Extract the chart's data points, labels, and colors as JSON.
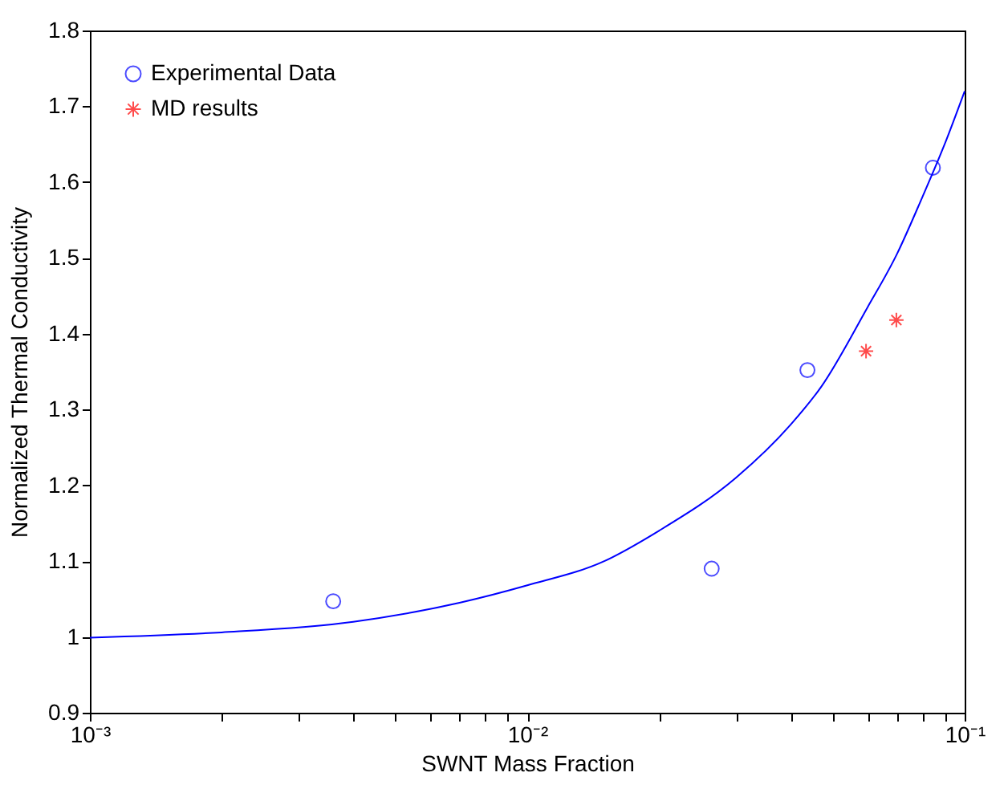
{
  "chart_data": {
    "type": "scatter",
    "xlabel": "SWNT Mass Fraction",
    "ylabel": "Normalized Thermal Conductivity",
    "log": "x",
    "grid": false,
    "legend": "top left",
    "xlim": [
      0.001,
      0.1
    ],
    "xticks": [
      {
        "value": 0.001,
        "label": "10⁻³"
      },
      {
        "value": 0.002,
        "label": null
      },
      {
        "value": 0.003,
        "label": null
      },
      {
        "value": 0.004,
        "label": null
      },
      {
        "value": 0.005,
        "label": null
      },
      {
        "value": 0.006,
        "label": null
      },
      {
        "value": 0.007,
        "label": null
      },
      {
        "value": 0.008,
        "label": null
      },
      {
        "value": 0.009,
        "label": null
      },
      {
        "value": 0.01,
        "label": "10⁻²"
      },
      {
        "value": 0.02,
        "label": null
      },
      {
        "value": 0.03,
        "label": null
      },
      {
        "value": 0.04,
        "label": null
      },
      {
        "value": 0.05,
        "label": null
      },
      {
        "value": 0.06,
        "label": null
      },
      {
        "value": 0.07,
        "label": null
      },
      {
        "value": 0.08,
        "label": null
      },
      {
        "value": 0.09,
        "label": null
      },
      {
        "value": 0.1,
        "label": "10⁻¹"
      }
    ],
    "ylim": [
      0.9,
      1.8
    ],
    "yticks": [
      0.9,
      1,
      1.1,
      1.2,
      1.3,
      1.4,
      1.5,
      1.6,
      1.7,
      1.8
    ],
    "series": [
      {
        "type": "line",
        "color": "#0000ff",
        "marker": "none",
        "x": [
          0.001,
          0.002,
          0.004,
          0.007,
          0.01,
          0.015,
          0.02,
          0.03,
          0.04,
          0.047,
          0.06,
          0.07,
          0.08,
          0.09,
          0.1
        ],
        "values": [
          0.999,
          1.006,
          1.02,
          1.045,
          1.068,
          1.1,
          1.14,
          1.21,
          1.28,
          1.33,
          1.435,
          1.505,
          1.58,
          1.65,
          1.72
        ]
      },
      {
        "name": "Experimental Data",
        "color": "#0000ff",
        "marker": "circle",
        "x": [
          0.0036,
          0.0264,
          0.0437,
          0.0846
        ],
        "values": [
          1.047,
          1.09,
          1.352,
          1.619
        ]
      },
      {
        "name": "MD results",
        "color": "#ff0000",
        "marker": "cross",
        "x": [
          0.0595,
          0.0698
        ],
        "values": [
          1.377,
          1.418
        ]
      }
    ]
  }
}
